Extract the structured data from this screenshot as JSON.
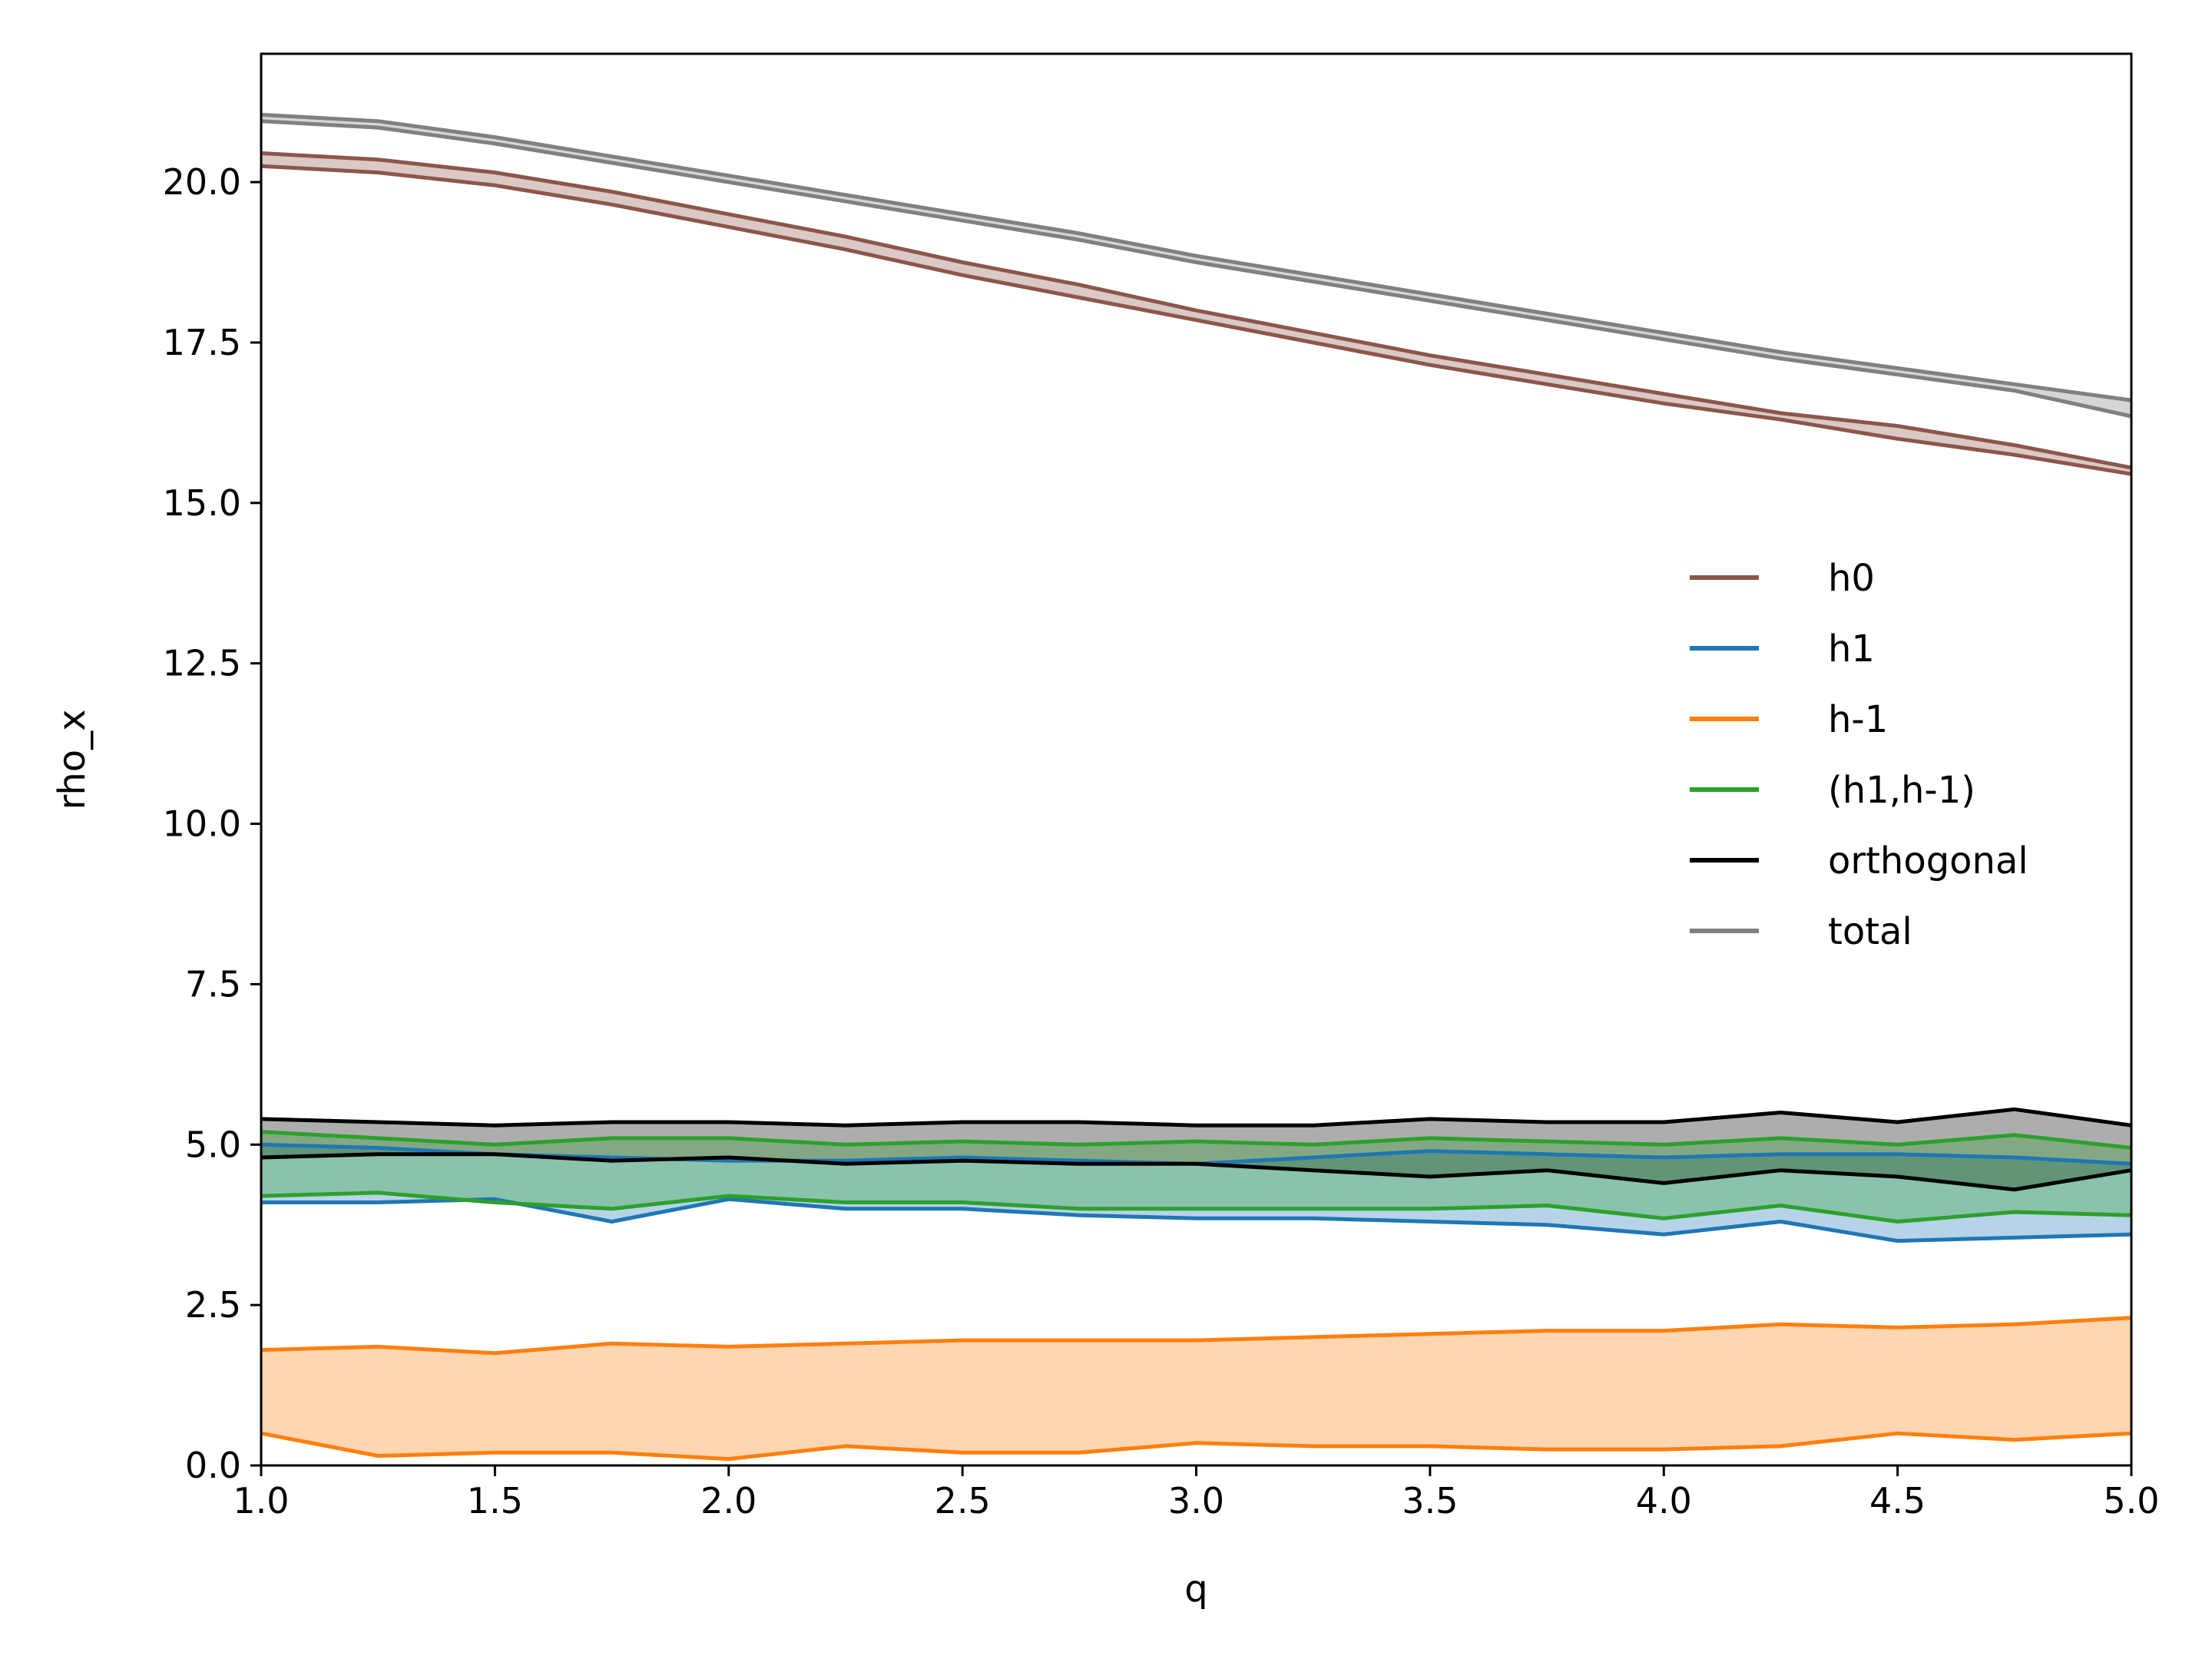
{
  "chart_data": {
    "type": "line",
    "title": "",
    "xlabel": "q",
    "ylabel": "rho_x",
    "xlim": [
      1.0,
      5.0
    ],
    "ylim": [
      0.0,
      22.0
    ],
    "xticks": [
      1.0,
      1.5,
      2.0,
      2.5,
      3.0,
      3.5,
      4.0,
      4.5,
      5.0
    ],
    "xtick_labels": [
      "1.0",
      "1.5",
      "2.0",
      "2.5",
      "3.0",
      "3.5",
      "4.0",
      "4.5",
      "5.0"
    ],
    "yticks": [
      0.0,
      2.5,
      5.0,
      7.5,
      10.0,
      12.5,
      15.0,
      17.5,
      20.0
    ],
    "ytick_labels": [
      "0.0",
      "2.5",
      "5.0",
      "7.5",
      "10.0",
      "12.5",
      "15.0",
      "17.5",
      "20.0"
    ],
    "grid": false,
    "legend_position": "center-right",
    "x": [
      1.0,
      1.25,
      1.5,
      1.75,
      2.0,
      2.25,
      2.5,
      2.75,
      3.0,
      3.25,
      3.5,
      3.75,
      4.0,
      4.25,
      4.5,
      4.75,
      5.0
    ],
    "series": [
      {
        "name": "h0",
        "color": "#8c564b",
        "upper": [
          20.45,
          20.35,
          20.15,
          19.85,
          19.5,
          19.15,
          18.75,
          18.4,
          18.0,
          17.65,
          17.3,
          17.0,
          16.7,
          16.4,
          16.2,
          15.9,
          15.55
        ],
        "lower": [
          20.25,
          20.15,
          19.95,
          19.65,
          19.3,
          18.95,
          18.55,
          18.2,
          17.85,
          17.5,
          17.15,
          16.85,
          16.55,
          16.3,
          16.0,
          15.75,
          15.45
        ]
      },
      {
        "name": "h1",
        "color": "#1f77b4",
        "upper": [
          5.0,
          4.95,
          4.85,
          4.8,
          4.75,
          4.75,
          4.8,
          4.75,
          4.7,
          4.8,
          4.9,
          4.85,
          4.8,
          4.85,
          4.85,
          4.8,
          4.7
        ],
        "lower": [
          4.1,
          4.1,
          4.15,
          3.8,
          4.15,
          4.0,
          4.0,
          3.9,
          3.85,
          3.85,
          3.8,
          3.75,
          3.6,
          3.8,
          3.5,
          3.55,
          3.6
        ]
      },
      {
        "name": "h-1",
        "color": "#ff7f0e",
        "upper": [
          1.8,
          1.85,
          1.75,
          1.9,
          1.85,
          1.9,
          1.95,
          1.95,
          1.95,
          2.0,
          2.05,
          2.1,
          2.1,
          2.2,
          2.15,
          2.2,
          2.3
        ],
        "lower": [
          0.5,
          0.15,
          0.2,
          0.2,
          0.1,
          0.3,
          0.2,
          0.2,
          0.35,
          0.3,
          0.3,
          0.25,
          0.25,
          0.3,
          0.5,
          0.4,
          0.5
        ]
      },
      {
        "name": "(h1,h-1)",
        "color": "#2ca02c",
        "upper": [
          5.2,
          5.1,
          5.0,
          5.1,
          5.1,
          5.0,
          5.05,
          5.0,
          5.05,
          5.0,
          5.1,
          5.05,
          5.0,
          5.1,
          5.0,
          5.15,
          4.95
        ],
        "lower": [
          4.2,
          4.25,
          4.1,
          4.0,
          4.2,
          4.1,
          4.1,
          4.0,
          4.0,
          4.0,
          4.0,
          4.05,
          3.85,
          4.05,
          3.8,
          3.95,
          3.9
        ]
      },
      {
        "name": "orthogonal",
        "color": "#000000",
        "upper": [
          5.4,
          5.35,
          5.3,
          5.35,
          5.35,
          5.3,
          5.35,
          5.35,
          5.3,
          5.3,
          5.4,
          5.35,
          5.35,
          5.5,
          5.35,
          5.55,
          5.3
        ],
        "lower": [
          4.8,
          4.85,
          4.85,
          4.75,
          4.8,
          4.7,
          4.75,
          4.7,
          4.7,
          4.6,
          4.5,
          4.6,
          4.4,
          4.6,
          4.5,
          4.3,
          4.6
        ]
      },
      {
        "name": "total",
        "color": "#808080",
        "upper": [
          21.05,
          20.95,
          20.7,
          20.4,
          20.1,
          19.8,
          19.5,
          19.2,
          18.85,
          18.55,
          18.25,
          17.95,
          17.65,
          17.35,
          17.1,
          16.85,
          16.6
        ],
        "lower": [
          20.95,
          20.85,
          20.6,
          20.3,
          20.0,
          19.7,
          19.4,
          19.1,
          18.75,
          18.45,
          18.15,
          17.85,
          17.55,
          17.25,
          17.0,
          16.75,
          16.35
        ]
      }
    ]
  }
}
